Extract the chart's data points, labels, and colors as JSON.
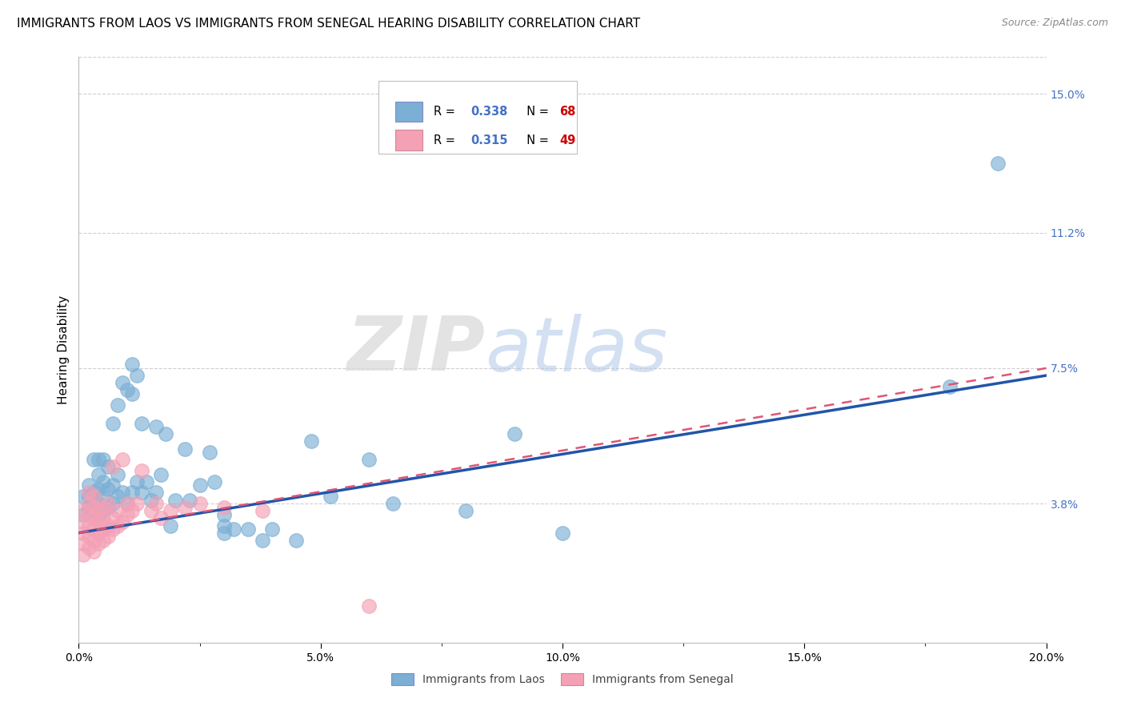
{
  "title": "IMMIGRANTS FROM LAOS VS IMMIGRANTS FROM SENEGAL HEARING DISABILITY CORRELATION CHART",
  "source": "Source: ZipAtlas.com",
  "xlabel_laos": "Immigrants from Laos",
  "xlabel_senegal": "Immigrants from Senegal",
  "ylabel": "Hearing Disability",
  "xlim": [
    0.0,
    0.2
  ],
  "ylim": [
    0.0,
    0.16
  ],
  "xtick_labels": [
    "0.0%",
    "",
    "5.0%",
    "",
    "10.0%",
    "",
    "15.0%",
    "",
    "20.0%"
  ],
  "xtick_values": [
    0.0,
    0.025,
    0.05,
    0.075,
    0.1,
    0.125,
    0.15,
    0.175,
    0.2
  ],
  "xtick_major_labels": [
    "0.0%",
    "5.0%",
    "10.0%",
    "15.0%",
    "20.0%"
  ],
  "xtick_major_values": [
    0.0,
    0.05,
    0.1,
    0.15,
    0.2
  ],
  "ytick_labels": [
    "3.8%",
    "7.5%",
    "11.2%",
    "15.0%"
  ],
  "ytick_values": [
    0.038,
    0.075,
    0.112,
    0.15
  ],
  "grid_color": "#d0d0d0",
  "laos_color": "#7bafd4",
  "senegal_color": "#f4a0b5",
  "laos_line_color": "#2255a8",
  "senegal_line_color": "#e05575",
  "R_laos": 0.338,
  "N_laos": 68,
  "R_senegal": 0.315,
  "N_senegal": 49,
  "laos_trend_x0": 0.0,
  "laos_trend_y0": 0.03,
  "laos_trend_x1": 0.2,
  "laos_trend_y1": 0.073,
  "senegal_trend_x0": 0.0,
  "senegal_trend_y0": 0.03,
  "senegal_trend_x1": 0.2,
  "senegal_trend_y1": 0.075,
  "laos_scatter_x": [
    0.001,
    0.001,
    0.002,
    0.002,
    0.002,
    0.003,
    0.003,
    0.003,
    0.003,
    0.004,
    0.004,
    0.004,
    0.004,
    0.004,
    0.005,
    0.005,
    0.005,
    0.005,
    0.006,
    0.006,
    0.006,
    0.007,
    0.007,
    0.007,
    0.008,
    0.008,
    0.008,
    0.009,
    0.009,
    0.01,
    0.01,
    0.011,
    0.011,
    0.011,
    0.012,
    0.012,
    0.013,
    0.013,
    0.014,
    0.015,
    0.016,
    0.016,
    0.017,
    0.018,
    0.019,
    0.02,
    0.022,
    0.023,
    0.025,
    0.027,
    0.028,
    0.03,
    0.03,
    0.03,
    0.032,
    0.035,
    0.038,
    0.04,
    0.045,
    0.048,
    0.052,
    0.06,
    0.065,
    0.08,
    0.09,
    0.1,
    0.18,
    0.19
  ],
  "laos_scatter_y": [
    0.035,
    0.04,
    0.037,
    0.04,
    0.043,
    0.036,
    0.038,
    0.041,
    0.05,
    0.035,
    0.038,
    0.042,
    0.046,
    0.05,
    0.036,
    0.04,
    0.044,
    0.05,
    0.037,
    0.042,
    0.048,
    0.038,
    0.043,
    0.06,
    0.04,
    0.046,
    0.065,
    0.041,
    0.071,
    0.038,
    0.069,
    0.041,
    0.068,
    0.076,
    0.044,
    0.073,
    0.041,
    0.06,
    0.044,
    0.039,
    0.041,
    0.059,
    0.046,
    0.057,
    0.032,
    0.039,
    0.053,
    0.039,
    0.043,
    0.052,
    0.044,
    0.03,
    0.032,
    0.035,
    0.031,
    0.031,
    0.028,
    0.031,
    0.028,
    0.055,
    0.04,
    0.05,
    0.038,
    0.036,
    0.057,
    0.03,
    0.07,
    0.131
  ],
  "senegal_scatter_x": [
    0.001,
    0.001,
    0.001,
    0.001,
    0.001,
    0.002,
    0.002,
    0.002,
    0.002,
    0.002,
    0.002,
    0.003,
    0.003,
    0.003,
    0.003,
    0.003,
    0.003,
    0.004,
    0.004,
    0.004,
    0.004,
    0.005,
    0.005,
    0.005,
    0.005,
    0.006,
    0.006,
    0.006,
    0.007,
    0.007,
    0.007,
    0.008,
    0.008,
    0.009,
    0.009,
    0.01,
    0.01,
    0.011,
    0.012,
    0.013,
    0.015,
    0.016,
    0.017,
    0.019,
    0.022,
    0.025,
    0.03,
    0.038,
    0.06
  ],
  "senegal_scatter_y": [
    0.024,
    0.027,
    0.03,
    0.033,
    0.036,
    0.026,
    0.029,
    0.032,
    0.035,
    0.038,
    0.041,
    0.025,
    0.028,
    0.031,
    0.034,
    0.037,
    0.04,
    0.027,
    0.03,
    0.033,
    0.036,
    0.028,
    0.031,
    0.034,
    0.037,
    0.029,
    0.032,
    0.038,
    0.031,
    0.034,
    0.048,
    0.032,
    0.036,
    0.033,
    0.05,
    0.035,
    0.038,
    0.036,
    0.038,
    0.047,
    0.036,
    0.038,
    0.034,
    0.036,
    0.037,
    0.038,
    0.037,
    0.036,
    0.01
  ],
  "watermark_zip": "ZIP",
  "watermark_atlas": "atlas",
  "title_fontsize": 11,
  "source_fontsize": 9,
  "axis_label_fontsize": 11,
  "tick_fontsize": 10,
  "legend_fontsize": 10,
  "right_tick_color": "#4472c4",
  "N_color": "#cc0000"
}
